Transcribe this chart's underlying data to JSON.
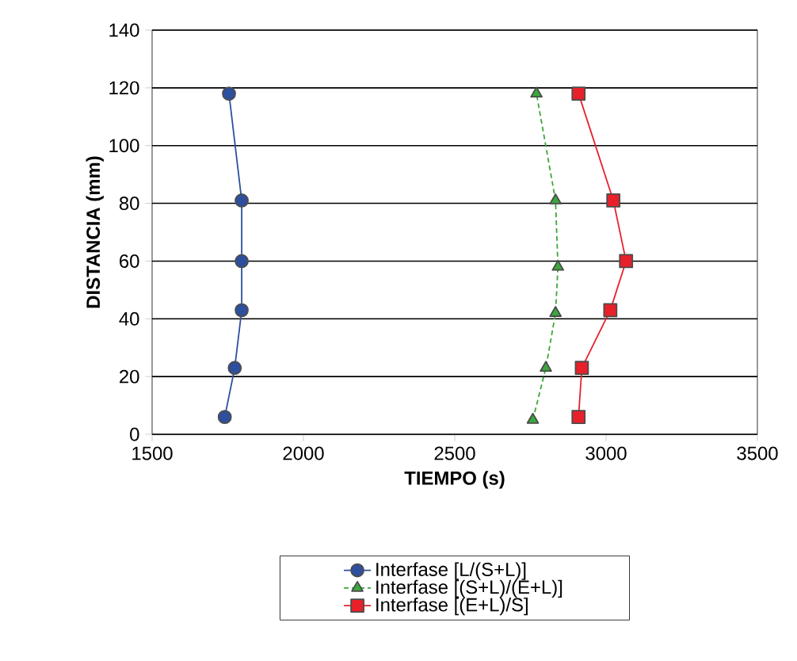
{
  "chart_data": {
    "type": "line",
    "xlabel": "TIEMPO (s)",
    "ylabel": "DISTANCIA (mm)",
    "xlim": [
      1500,
      3500
    ],
    "xticks": [
      1500,
      2000,
      2500,
      3000,
      3500
    ],
    "ylim": [
      0,
      140
    ],
    "yticks": [
      0,
      20,
      40,
      60,
      80,
      100,
      120,
      140
    ],
    "grid": "y",
    "legend": "bottom",
    "series": [
      {
        "name": "Interfase [L/(S+L)]",
        "color": "#2e4f9e",
        "marker": "circle",
        "line_style": "solid",
        "x": [
          1740,
          1773,
          1796,
          1796,
          1796,
          1754
        ],
        "values": [
          6,
          23,
          43,
          60,
          81,
          118
        ]
      },
      {
        "name": "Interfase [(S+L)/(E+L)]",
        "color": "#3aa83a",
        "marker": "triangle",
        "line_style": "dotted",
        "x": [
          2758,
          2801,
          2833,
          2841,
          2833,
          2770
        ],
        "values": [
          5,
          23,
          42,
          58,
          81,
          118
        ]
      },
      {
        "name": "Interfase [(E+L)/S]",
        "color": "#e8202a",
        "marker": "square",
        "line_style": "solid",
        "x": [
          2909,
          2920,
          3014,
          3066,
          3024,
          2909
        ],
        "values": [
          6,
          23,
          43,
          60,
          81,
          118
        ]
      }
    ]
  }
}
